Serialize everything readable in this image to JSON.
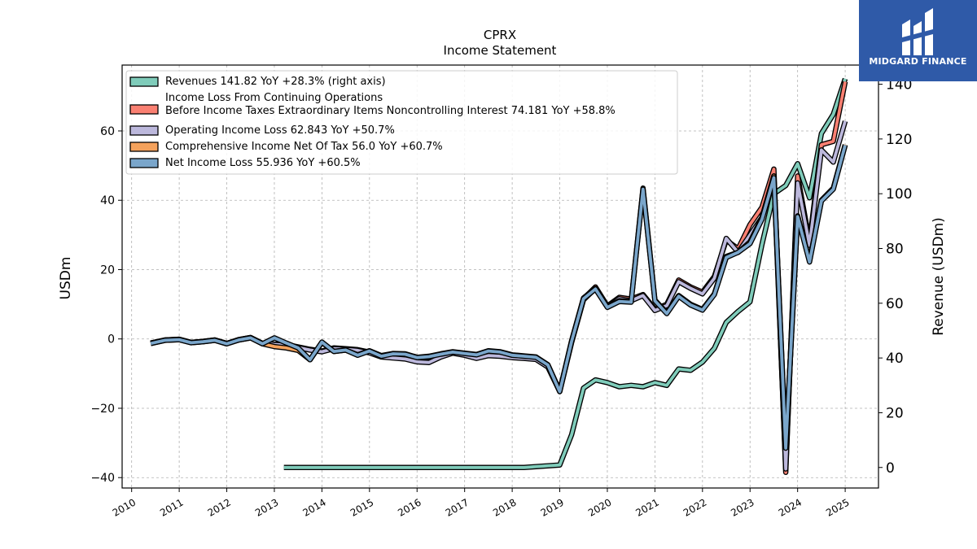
{
  "chart_data": {
    "type": "line",
    "title": "CPRX",
    "subtitle": "Income Statement",
    "ylabel": "USDm",
    "ylabel_right": "Revenue (USDm)",
    "ylim": [
      -43,
      79
    ],
    "ylim_right": [
      -7.5,
      147
    ],
    "yticks": [
      -40,
      -20,
      0,
      20,
      40,
      60
    ],
    "yticks_right": [
      0,
      20,
      40,
      60,
      80,
      100,
      120,
      140
    ],
    "xlim": [
      2009.8,
      2025.7
    ],
    "xticks": [
      "2010",
      "2011",
      "2012",
      "2013",
      "2014",
      "2015",
      "2016",
      "2017",
      "2018",
      "2019",
      "2020",
      "2021",
      "2022",
      "2023",
      "2024",
      "2025"
    ],
    "grid": true,
    "legend_position": "top-left",
    "series": [
      {
        "name": "Revenues",
        "legend_label": "Revenues  141.82 YoY +28.3% (right axis)",
        "axis": "right",
        "color": "#7fccba",
        "x": [
          2013.2,
          2013.5,
          2013.75,
          2014.0,
          2014.25,
          2014.5,
          2014.75,
          2015.0,
          2015.25,
          2015.5,
          2015.75,
          2016.0,
          2016.25,
          2016.5,
          2016.75,
          2017.0,
          2017.25,
          2017.5,
          2017.75,
          2018.0,
          2018.25,
          2018.5,
          2018.75,
          2019.0,
          2019.25,
          2019.5,
          2019.75,
          2020.0,
          2020.25,
          2020.5,
          2020.75,
          2021.0,
          2021.25,
          2021.5,
          2021.75,
          2022.0,
          2022.25,
          2022.5,
          2022.75,
          2023.0,
          2023.25,
          2023.5,
          2023.75,
          2024.0,
          2024.25,
          2024.5,
          2024.75,
          2025.0
        ],
        "y": [
          0,
          0,
          0,
          0,
          0,
          0,
          0,
          0,
          0,
          0,
          0,
          0,
          0,
          0,
          0,
          0,
          0,
          0,
          0,
          0,
          0,
          0.3,
          0.6,
          0.9,
          12,
          29,
          32,
          31,
          29.5,
          30,
          29.5,
          31,
          30,
          36,
          35.5,
          38.5,
          43.5,
          53,
          57,
          60.5,
          81.5,
          100,
          103,
          111,
          98.5,
          122,
          129,
          142
        ]
      },
      {
        "name": "Income Loss From Continuing Operations Before Income Taxes Extraordinary Items Noncontrolling Interest",
        "legend_label": [
          "Income Loss From Continuing Operations",
          "Before Income Taxes Extraordinary Items Noncontrolling Interest  74.181 YoY +58.8%"
        ],
        "axis": "left",
        "color": "#fa8072",
        "x": [
          2010.4,
          2010.7,
          2011.0,
          2011.25,
          2011.5,
          2011.75,
          2012.0,
          2012.25,
          2012.5,
          2012.75,
          2013.0,
          2013.25,
          2013.5,
          2013.75,
          2014.0,
          2014.25,
          2014.5,
          2014.75,
          2015.0,
          2015.25,
          2015.5,
          2015.75,
          2016.0,
          2016.25,
          2016.5,
          2016.75,
          2017.0,
          2017.25,
          2017.5,
          2017.75,
          2018.0,
          2018.25,
          2018.5,
          2018.75,
          2019.0,
          2019.25,
          2019.5,
          2019.75,
          2020.0,
          2020.25,
          2020.5,
          2020.75,
          2021.0,
          2021.25,
          2021.5,
          2021.75,
          2022.0,
          2022.25,
          2022.5,
          2022.75,
          2023.0,
          2023.25,
          2023.5,
          2023.75,
          2024.0,
          2024.25,
          2024.5,
          2024.75,
          2025.0
        ],
        "y": [
          -1.2,
          -0.3,
          -0.1,
          -1,
          -0.7,
          -0.3,
          -1.3,
          -0.2,
          0.4,
          -1.3,
          -1.5,
          -1.6,
          -2.3,
          -3,
          -3.5,
          -2.6,
          -2.8,
          -3.1,
          -3.8,
          -5,
          -5.2,
          -5.5,
          -6.3,
          -6.6,
          -5,
          -3.9,
          -4.5,
          -5.4,
          -4.6,
          -4.8,
          -5.2,
          -5.4,
          -5.7,
          -7.9,
          -15,
          -0.8,
          11.6,
          15,
          9.5,
          12,
          11.5,
          12.8,
          8.6,
          10,
          17,
          15,
          13.5,
          18,
          28.5,
          26,
          33,
          38,
          49,
          -38.5,
          47,
          28,
          56,
          57,
          74.2
        ]
      },
      {
        "name": "Operating Income Loss",
        "legend_label": "Operating Income Loss  62.843 YoY +50.7%",
        "axis": "left",
        "color": "#bcb8dc",
        "x": [
          2010.4,
          2010.7,
          2011.0,
          2011.25,
          2011.5,
          2011.75,
          2012.0,
          2012.25,
          2012.5,
          2012.75,
          2013.0,
          2013.25,
          2013.5,
          2013.75,
          2014.0,
          2014.25,
          2014.5,
          2014.75,
          2015.0,
          2015.25,
          2015.5,
          2015.75,
          2016.0,
          2016.25,
          2016.5,
          2016.75,
          2017.0,
          2017.25,
          2017.5,
          2017.75,
          2018.0,
          2018.25,
          2018.5,
          2018.75,
          2019.0,
          2019.25,
          2019.5,
          2019.75,
          2020.0,
          2020.25,
          2020.5,
          2020.75,
          2021.0,
          2021.25,
          2021.5,
          2021.75,
          2022.0,
          2022.25,
          2022.5,
          2022.75,
          2023.0,
          2023.25,
          2023.5,
          2023.75,
          2024.0,
          2024.25,
          2024.5,
          2024.75,
          2025.0
        ],
        "y": [
          -1.2,
          -0.3,
          -0.1,
          -1,
          -0.7,
          -0.3,
          -1.3,
          -0.2,
          0.4,
          -1.3,
          -1.6,
          -1.8,
          -2.5,
          -3.2,
          -3.7,
          -2.8,
          -3,
          -3.3,
          -4,
          -5.2,
          -5.5,
          -5.8,
          -6.6,
          -6.8,
          -5.2,
          -4.1,
          -4.7,
          -5.6,
          -4.8,
          -5,
          -5.4,
          -5.6,
          -5.9,
          -8.1,
          -15.2,
          -1,
          11.3,
          14.6,
          9.2,
          11.6,
          11,
          12.5,
          8.2,
          9.6,
          16.5,
          14.6,
          13,
          17.5,
          29,
          25,
          30,
          35,
          47,
          -37.5,
          45,
          27,
          54.5,
          51,
          62.8
        ]
      },
      {
        "name": "Comprehensive Income Net Of Tax",
        "legend_label": "Comprehensive Income Net Of Tax  56.0 YoY +60.7%",
        "axis": "left",
        "color": "#f5a25c",
        "x": [
          2010.4,
          2010.7,
          2011.0,
          2011.25,
          2011.5,
          2011.75,
          2012.0,
          2012.25,
          2012.5,
          2012.75,
          2013.0,
          2013.25,
          2013.5,
          2013.75,
          2014.0,
          2014.25,
          2014.5,
          2014.75,
          2015.0,
          2015.25,
          2015.5,
          2015.75,
          2016.0,
          2016.25,
          2016.5,
          2016.75,
          2017.0,
          2017.25,
          2017.5,
          2017.75,
          2018.0,
          2018.25,
          2018.5,
          2018.75,
          2019.0,
          2019.25,
          2019.5,
          2019.75,
          2020.0,
          2020.25,
          2020.5,
          2020.75,
          2021.0,
          2021.25,
          2021.5,
          2021.75,
          2022.0,
          2022.25,
          2022.5,
          2022.75,
          2023.0,
          2023.25,
          2023.5,
          2023.75,
          2024.0,
          2024.25,
          2024.5,
          2024.75,
          2025.0
        ],
        "y": [
          -1.3,
          -0.4,
          -0.2,
          -1.1,
          -0.8,
          -0.4,
          -1.4,
          -0.3,
          0.3,
          -1.4,
          -2.2,
          -2.6,
          -3.3,
          -6,
          -1,
          -3.6,
          -3.2,
          -4.6,
          -3.4,
          -4.8,
          -4.2,
          -4.3,
          -5.3,
          -5,
          -4.3,
          -3.7,
          -4.1,
          -4.5,
          -3.4,
          -3.7,
          -4.6,
          -4.9,
          -5.2,
          -7.4,
          -15,
          -0.5,
          11.8,
          14.6,
          9.3,
          11,
          10.8,
          43.5,
          11.2,
          7.5,
          12.5,
          10,
          8.5,
          13,
          23.8,
          25,
          28,
          35,
          47,
          -31.5,
          35.5,
          22.5,
          40,
          43.5,
          56
        ]
      },
      {
        "name": "Net Income Loss",
        "legend_label": "Net Income Loss  55.936 YoY +60.5%",
        "axis": "left",
        "color": "#7aa6cb",
        "x": [
          2010.4,
          2010.7,
          2011.0,
          2011.25,
          2011.5,
          2011.75,
          2012.0,
          2012.25,
          2012.5,
          2012.75,
          2013.0,
          2013.25,
          2013.5,
          2013.75,
          2014.0,
          2014.25,
          2014.5,
          2014.75,
          2015.0,
          2015.25,
          2015.5,
          2015.75,
          2016.0,
          2016.25,
          2016.5,
          2016.75,
          2017.0,
          2017.25,
          2017.5,
          2017.75,
          2018.0,
          2018.25,
          2018.5,
          2018.75,
          2019.0,
          2019.25,
          2019.5,
          2019.75,
          2020.0,
          2020.25,
          2020.5,
          2020.75,
          2021.0,
          2021.25,
          2021.5,
          2021.75,
          2022.0,
          2022.25,
          2022.5,
          2022.75,
          2023.0,
          2023.25,
          2023.5,
          2023.75,
          2024.0,
          2024.25,
          2024.5,
          2024.75,
          2025.0
        ],
        "y": [
          -1.3,
          -0.4,
          -0.2,
          -1.1,
          -0.8,
          -0.4,
          -1.4,
          -0.3,
          0.3,
          -1.4,
          0.3,
          -1.2,
          -2.6,
          -6,
          -0.9,
          -3.6,
          -3.2,
          -4.7,
          -3.5,
          -5,
          -4.3,
          -4.4,
          -5.4,
          -5.1,
          -4.4,
          -3.8,
          -4.2,
          -4.6,
          -3.5,
          -3.8,
          -4.7,
          -5,
          -5.3,
          -7.5,
          -15.2,
          -0.7,
          11.6,
          14.4,
          9.1,
          10.8,
          10.6,
          43.2,
          11,
          7.3,
          12.3,
          9.8,
          8.3,
          12.8,
          23.5,
          25,
          27.5,
          34.5,
          46.5,
          -31.5,
          35.3,
          22.2,
          39.8,
          43.2,
          55.9
        ]
      }
    ]
  },
  "brand": {
    "name": "MIDGARD FINANCE",
    "color": "#2f5aa8"
  }
}
